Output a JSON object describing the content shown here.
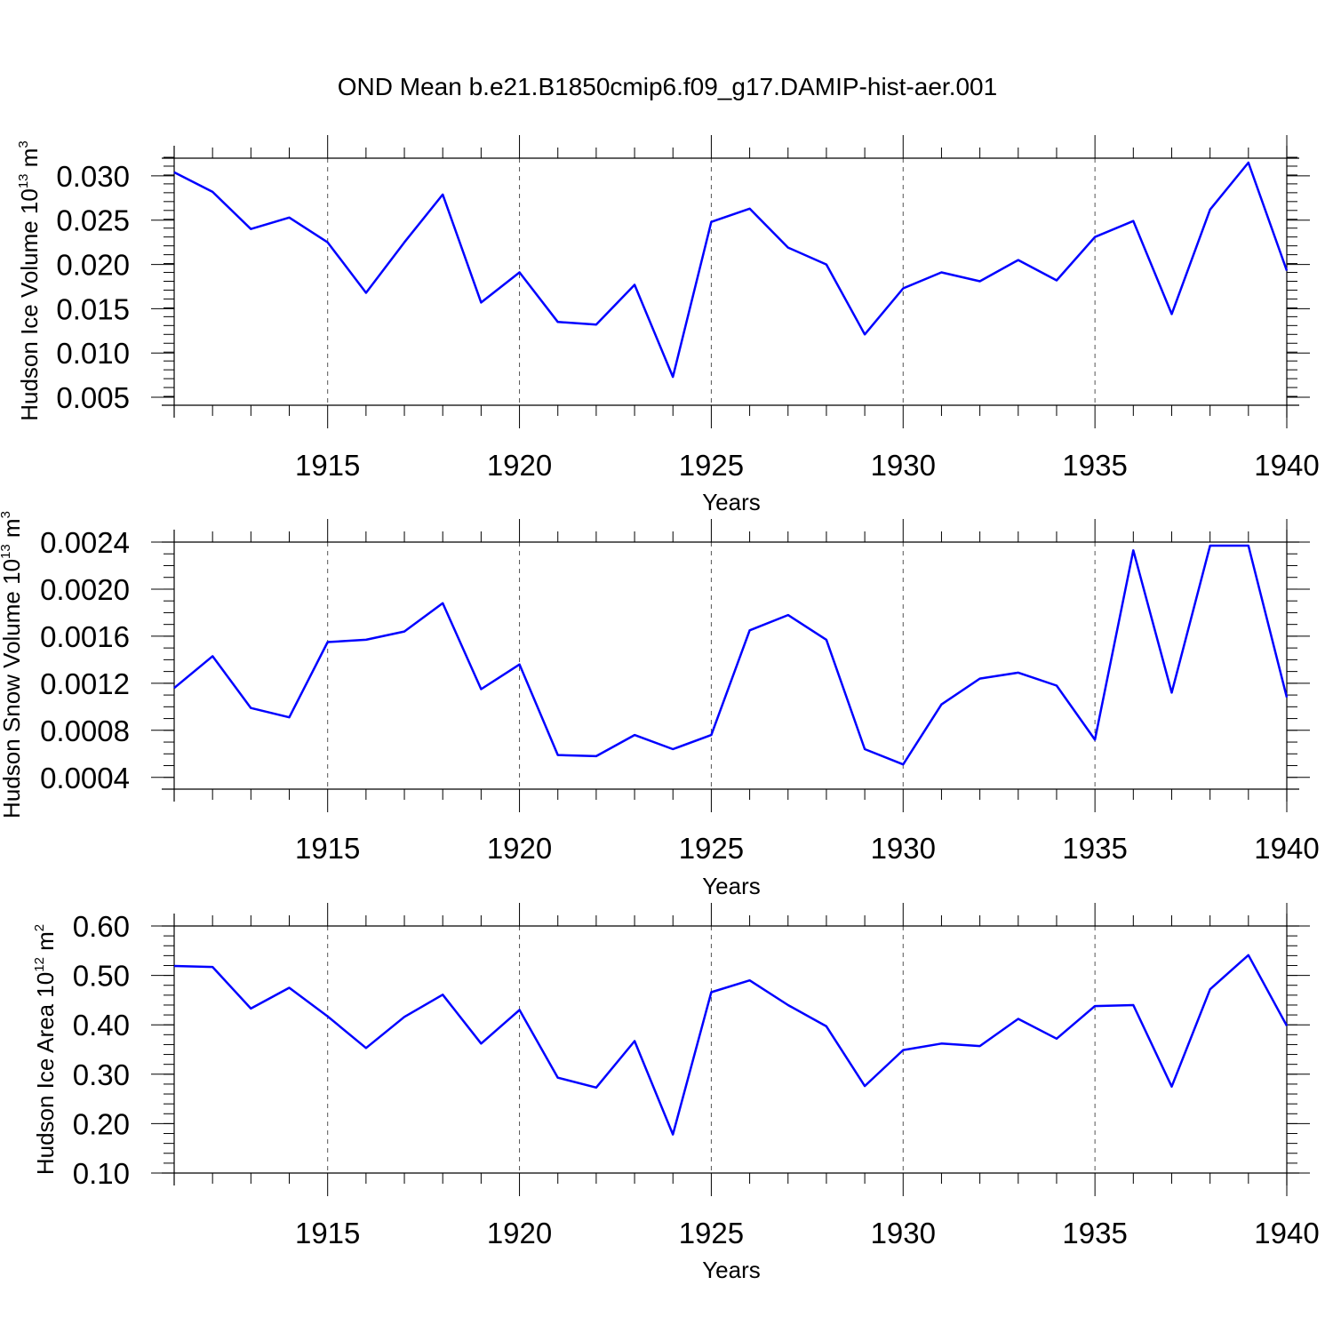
{
  "figure": {
    "title": "OND Mean b.e21.B1850cmip6.f09_g17.DAMIP-hist-aer.001",
    "line_color": "#0000ff"
  },
  "chart_data": [
    {
      "type": "line",
      "title": "OND Mean b.e21.B1850cmip6.f09_g17.DAMIP-hist-aer.001",
      "xlabel": "Years",
      "ylabel": {
        "text": "Hudson Ice Volume 10",
        "exponent": "13",
        "unit": " m",
        "unit_exponent": "3"
      },
      "xlim": [
        1911,
        1940
      ],
      "ylim": [
        0.0041,
        0.032
      ],
      "x_ticks": [
        1915,
        1920,
        1925,
        1930,
        1935,
        1940
      ],
      "x_tick_labels": [
        "1915",
        "1920",
        "1925",
        "1930",
        "1935",
        "1940"
      ],
      "y_ticks": [
        0.005,
        0.01,
        0.015,
        0.02,
        0.025,
        0.03
      ],
      "y_tick_labels": [
        "0.005",
        "0.010",
        "0.015",
        "0.020",
        "0.025",
        "0.030"
      ],
      "y_minor_step": 0.001,
      "grid": "x-dashed",
      "color": "#0000ff",
      "x": [
        1911,
        1912,
        1913,
        1914,
        1915,
        1916,
        1917,
        1918,
        1919,
        1920,
        1921,
        1922,
        1923,
        1924,
        1925,
        1926,
        1927,
        1928,
        1929,
        1930,
        1931,
        1932,
        1933,
        1934,
        1935,
        1936,
        1937,
        1938,
        1939,
        1940
      ],
      "values": [
        0.0304,
        0.0282,
        0.024,
        0.0253,
        0.0225,
        0.0168,
        0.0225,
        0.0279,
        0.0157,
        0.0191,
        0.0135,
        0.0132,
        0.0177,
        0.0073,
        0.0248,
        0.0263,
        0.0219,
        0.02,
        0.0121,
        0.0173,
        0.0191,
        0.0181,
        0.0205,
        0.0182,
        0.0231,
        0.0249,
        0.0144,
        0.0262,
        0.0315,
        0.0193
      ]
    },
    {
      "type": "line",
      "xlabel": "Years",
      "ylabel": {
        "text": "Hudson Snow Volume 10",
        "exponent": "13",
        "unit": " m",
        "unit_exponent": "3"
      },
      "xlim": [
        1911,
        1940
      ],
      "ylim": [
        0.0003,
        0.0024
      ],
      "x_ticks": [
        1915,
        1920,
        1925,
        1930,
        1935,
        1940
      ],
      "x_tick_labels": [
        "1915",
        "1920",
        "1925",
        "1930",
        "1935",
        "1940"
      ],
      "y_ticks": [
        0.0004,
        0.0008,
        0.0012,
        0.0016,
        0.002,
        0.0024
      ],
      "y_tick_labels": [
        "0.0004",
        "0.0008",
        "0.0012",
        "0.0016",
        "0.0020",
        "0.0024"
      ],
      "y_minor_step": 0.0001,
      "grid": "x-dashed",
      "color": "#0000ff",
      "x": [
        1911,
        1912,
        1913,
        1914,
        1915,
        1916,
        1917,
        1918,
        1919,
        1920,
        1921,
        1922,
        1923,
        1924,
        1925,
        1926,
        1927,
        1928,
        1929,
        1930,
        1931,
        1932,
        1933,
        1934,
        1935,
        1936,
        1937,
        1938,
        1939,
        1940
      ],
      "values": [
        0.00116,
        0.00143,
        0.00099,
        0.00091,
        0.00155,
        0.00157,
        0.00164,
        0.00188,
        0.00115,
        0.00136,
        0.00059,
        0.00058,
        0.00076,
        0.00064,
        0.00076,
        0.00165,
        0.00178,
        0.00157,
        0.00064,
        0.00051,
        0.00102,
        0.00124,
        0.00129,
        0.00118,
        0.00072,
        0.00233,
        0.00112,
        0.00237,
        0.00237,
        0.00108
      ]
    },
    {
      "type": "line",
      "xlabel": "Years",
      "ylabel": {
        "text": "Hudson Ice Area 10",
        "exponent": "12",
        "unit": " m",
        "unit_exponent": "2"
      },
      "xlim": [
        1911,
        1940
      ],
      "ylim": [
        0.1,
        0.6
      ],
      "x_ticks": [
        1915,
        1920,
        1925,
        1930,
        1935,
        1940
      ],
      "x_tick_labels": [
        "1915",
        "1920",
        "1925",
        "1930",
        "1935",
        "1940"
      ],
      "y_ticks": [
        0.1,
        0.2,
        0.3,
        0.4,
        0.5,
        0.6
      ],
      "y_tick_labels": [
        "0.10",
        "0.20",
        "0.30",
        "0.40",
        "0.50",
        "0.60"
      ],
      "y_minor_step": 0.02,
      "grid": "x-dashed",
      "color": "#0000ff",
      "x": [
        1911,
        1912,
        1913,
        1914,
        1915,
        1916,
        1917,
        1918,
        1919,
        1920,
        1921,
        1922,
        1923,
        1924,
        1925,
        1926,
        1927,
        1928,
        1929,
        1930,
        1931,
        1932,
        1933,
        1934,
        1935,
        1936,
        1937,
        1938,
        1939,
        1940
      ],
      "values": [
        0.519,
        0.517,
        0.433,
        0.475,
        0.417,
        0.353,
        0.416,
        0.461,
        0.362,
        0.43,
        0.293,
        0.273,
        0.367,
        0.178,
        0.466,
        0.49,
        0.44,
        0.397,
        0.276,
        0.349,
        0.362,
        0.357,
        0.412,
        0.372,
        0.438,
        0.44,
        0.275,
        0.472,
        0.541,
        0.398
      ]
    }
  ]
}
